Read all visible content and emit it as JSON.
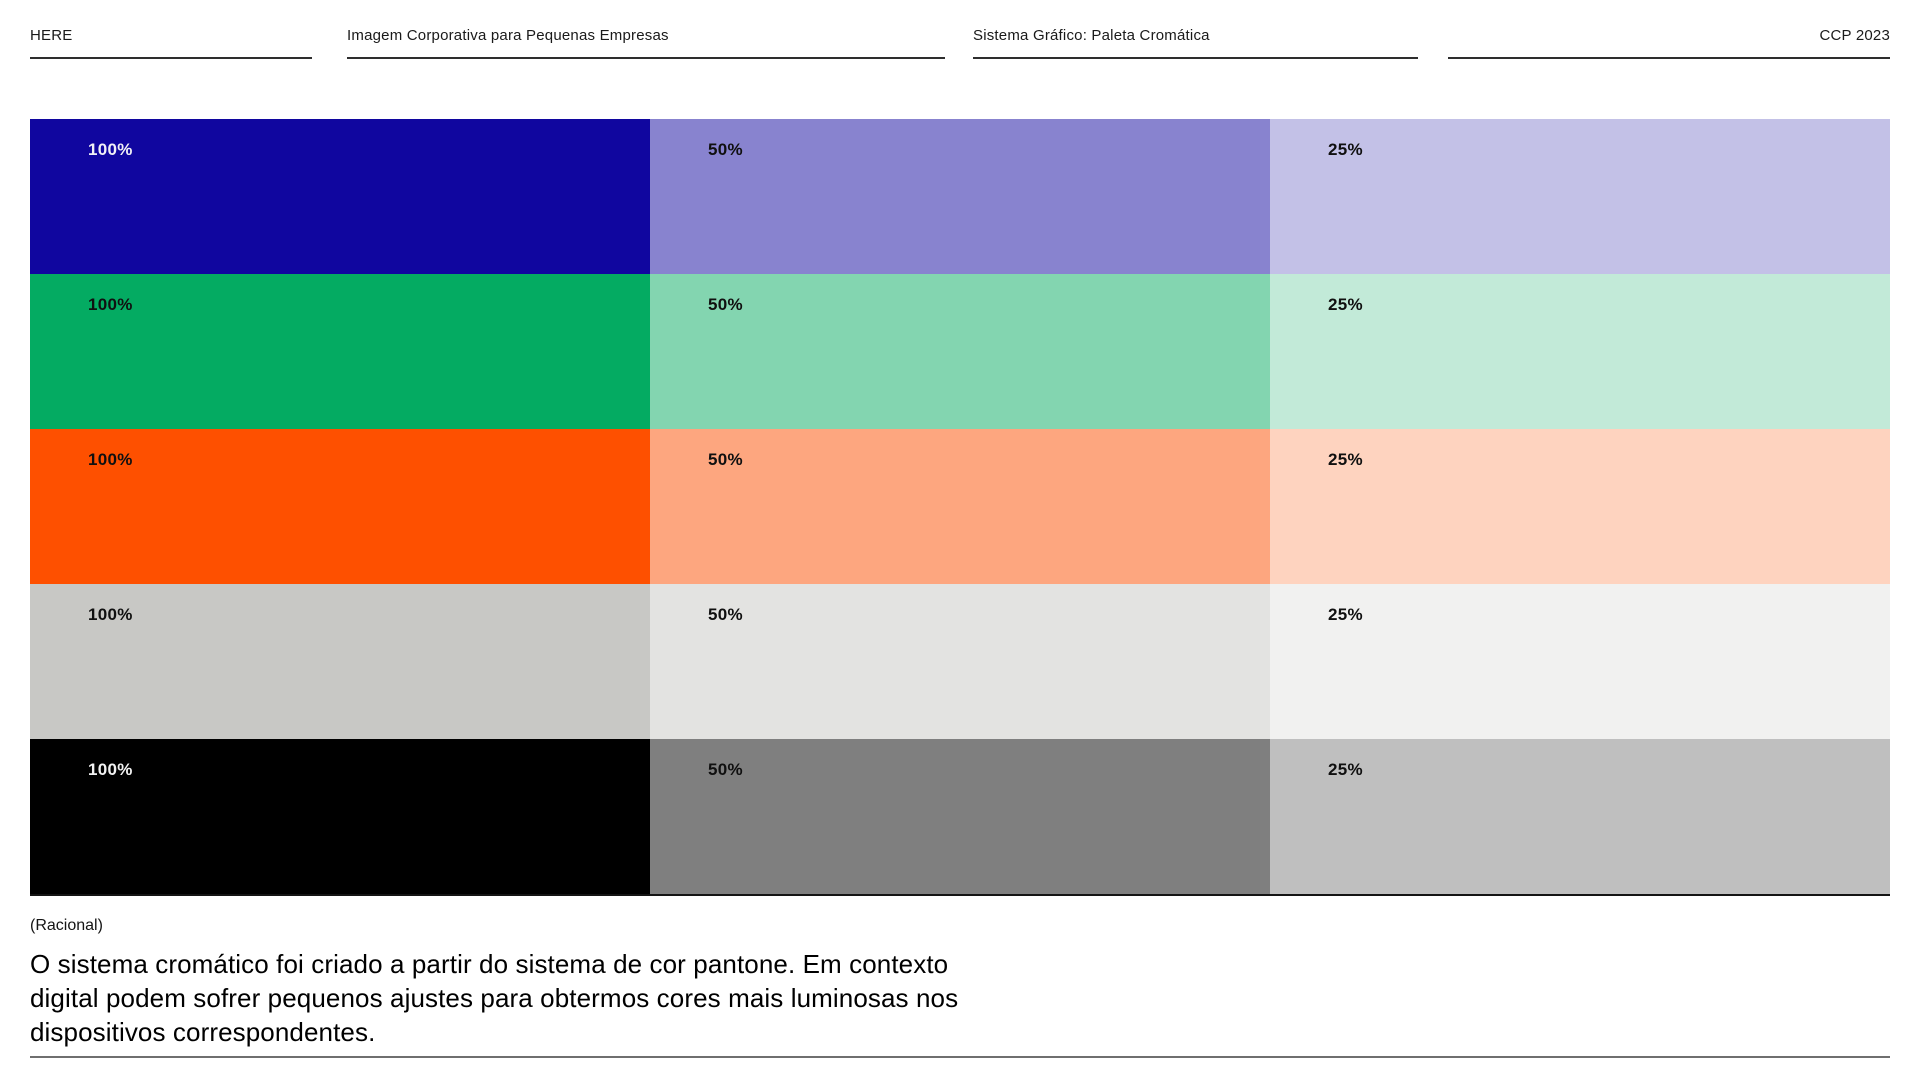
{
  "header": {
    "cols": [
      {
        "label": "HERE"
      },
      {
        "label": "Imagem Corporativa para Pequenas Empresas"
      },
      {
        "label": "Sistema Gráfico: Paleta Cromática"
      },
      {
        "label": "CCP 2023"
      }
    ]
  },
  "palette": {
    "tint_labels": [
      "100%",
      "50%",
      "25%"
    ],
    "rows": [
      {
        "name": "blue",
        "swatches": [
          {
            "label": "100%",
            "color": "#10069F",
            "text_color": "#F1F0F6"
          },
          {
            "label": "50%",
            "color": "#8883CF",
            "text_color": "#101010"
          },
          {
            "label": "25%",
            "color": "#C3C1E7",
            "text_color": "#101010"
          }
        ]
      },
      {
        "name": "green",
        "swatches": [
          {
            "label": "100%",
            "color": "#04AB62",
            "text_color": "#101010"
          },
          {
            "label": "50%",
            "color": "#83D5B0",
            "text_color": "#101010"
          },
          {
            "label": "25%",
            "color": "#C2EAD8",
            "text_color": "#101010"
          }
        ]
      },
      {
        "name": "orange",
        "swatches": [
          {
            "label": "100%",
            "color": "#FE5000",
            "text_color": "#101010"
          },
          {
            "label": "50%",
            "color": "#FDA67F",
            "text_color": "#101010"
          },
          {
            "label": "25%",
            "color": "#FED3BF",
            "text_color": "#101010"
          }
        ]
      },
      {
        "name": "gray",
        "swatches": [
          {
            "label": "100%",
            "color": "#C8C8C5",
            "text_color": "#101010"
          },
          {
            "label": "50%",
            "color": "#E3E3E1",
            "text_color": "#101010"
          },
          {
            "label": "25%",
            "color": "#F1F1F0",
            "text_color": "#101010"
          }
        ]
      },
      {
        "name": "black",
        "swatches": [
          {
            "label": "100%",
            "color": "#000000",
            "text_color": "#F2F2F2"
          },
          {
            "label": "50%",
            "color": "#7F7F7F",
            "text_color": "#101010"
          },
          {
            "label": "25%",
            "color": "#BFBFBF",
            "text_color": "#101010"
          }
        ]
      }
    ]
  },
  "rational": {
    "label": "(Racional)",
    "lines": [
      "O sistema cromático foi criado a partir do sistema de cor pantone. Em contexto",
      "digital podem sofrer pequenos ajustes para obtermos cores mais luminosas nos",
      "dispositivos correspondentes."
    ]
  }
}
